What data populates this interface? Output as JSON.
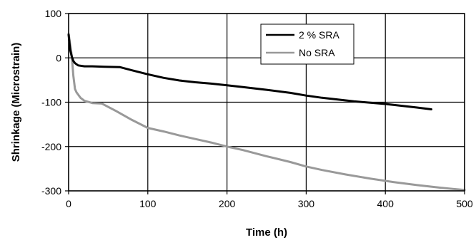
{
  "chart_data": {
    "type": "line",
    "title": "",
    "xlabel": "Time (h)",
    "ylabel": "Shrinkage (Microstrain)",
    "xlim": [
      0,
      500
    ],
    "ylim": [
      -300,
      100
    ],
    "xticks": [
      "0",
      "100",
      "200",
      "300",
      "400",
      "500"
    ],
    "yticks": [
      "100",
      "0",
      "-100",
      "-200",
      "-300"
    ],
    "grid": true,
    "legend_position": "top-right",
    "series": [
      {
        "name": "2 % SRA",
        "color": "#000000",
        "x": [
          0,
          2,
          4,
          6,
          8,
          12,
          20,
          30,
          45,
          65,
          80,
          100,
          120,
          140,
          160,
          180,
          200,
          220,
          250,
          280,
          300,
          320,
          340,
          360,
          380,
          400,
          420,
          440,
          458
        ],
        "y": [
          52,
          18,
          3,
          -7,
          -12,
          -17,
          -19,
          -19,
          -20,
          -21,
          -28,
          -37,
          -45,
          -51,
          -55,
          -58,
          -62,
          -66,
          -72,
          -79,
          -85,
          -90,
          -94,
          -98,
          -101,
          -104,
          -108,
          -112,
          -116
        ]
      },
      {
        "name": "No SRA",
        "color": "#999999",
        "x": [
          0,
          2,
          4,
          6,
          8,
          10,
          15,
          20,
          30,
          42,
          60,
          80,
          100,
          120,
          140,
          160,
          180,
          200,
          220,
          250,
          280,
          300,
          320,
          350,
          380,
          410,
          440,
          470,
          500
        ],
        "y": [
          55,
          30,
          5,
          -40,
          -70,
          -78,
          -90,
          -97,
          -102,
          -103,
          -120,
          -140,
          -158,
          -166,
          -175,
          -183,
          -191,
          -200,
          -208,
          -222,
          -235,
          -245,
          -253,
          -263,
          -272,
          -280,
          -287,
          -293,
          -298
        ]
      }
    ]
  }
}
